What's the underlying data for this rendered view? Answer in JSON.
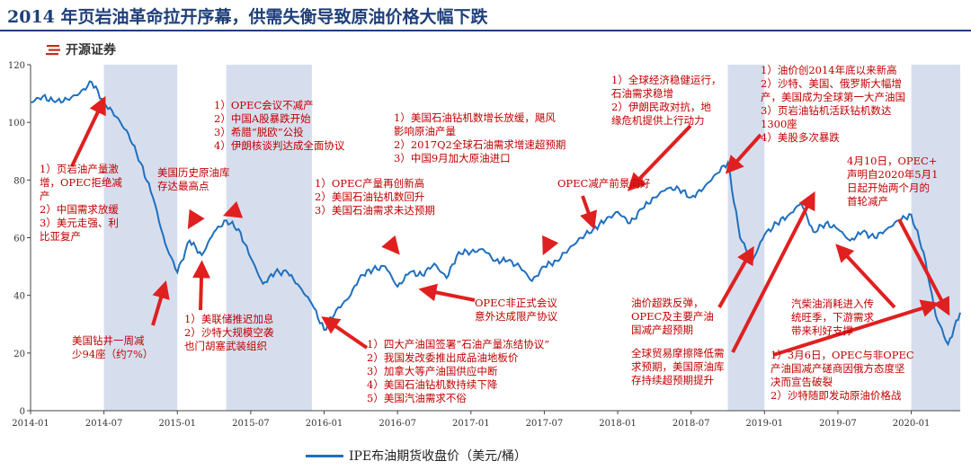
{
  "header": {
    "title": "2014 年页岩油革命拉开序幕，供需失衡导致原油价格大幅下跌",
    "logo_text": "开源证券"
  },
  "colors": {
    "line": "#1f6fbf",
    "shade": "#d6deee",
    "annotation": "#c00000",
    "arrow": "#e02020",
    "title": "#1f3f7a"
  },
  "chart_data": {
    "type": "line",
    "ylim": [
      0,
      120
    ],
    "yticks": [
      0,
      20,
      40,
      60,
      80,
      100,
      120
    ],
    "xlim": [
      "2014-01",
      "2020-05"
    ],
    "xticks": [
      "2014-01",
      "2014-07",
      "2015-01",
      "2015-07",
      "2016-01",
      "2016-07",
      "2017-01",
      "2017-07",
      "2018-01",
      "2018-07",
      "2019-01",
      "2019-07",
      "2020-01"
    ],
    "legend": "IPE布油期货收盘价（美元/桶）",
    "shaded_periods": [
      [
        "2014-07",
        "2015-01"
      ],
      [
        "2015-05",
        "2015-12"
      ],
      [
        "2018-10",
        "2019-01"
      ],
      [
        "2020-01",
        "2020-05"
      ]
    ],
    "series": [
      {
        "name": "IPE布油期货收盘价（美元/桶）",
        "points": [
          [
            "2014-01",
            107
          ],
          [
            "2014-02",
            109
          ],
          [
            "2014-03",
            107
          ],
          [
            "2014-04",
            108
          ],
          [
            "2014-05",
            110
          ],
          [
            "2014-06",
            114
          ],
          [
            "2014-07",
            107
          ],
          [
            "2014-08",
            102
          ],
          [
            "2014-09",
            96
          ],
          [
            "2014-10",
            86
          ],
          [
            "2014-11",
            74
          ],
          [
            "2014-12",
            58
          ],
          [
            "2015-01",
            48
          ],
          [
            "2015-02",
            59
          ],
          [
            "2015-03",
            54
          ],
          [
            "2015-04",
            62
          ],
          [
            "2015-05",
            66
          ],
          [
            "2015-06",
            63
          ],
          [
            "2015-07",
            53
          ],
          [
            "2015-08",
            44
          ],
          [
            "2015-09",
            48
          ],
          [
            "2015-10",
            48
          ],
          [
            "2015-11",
            43
          ],
          [
            "2015-12",
            37
          ],
          [
            "2016-01",
            28
          ],
          [
            "2016-02",
            35
          ],
          [
            "2016-03",
            39
          ],
          [
            "2016-04",
            47
          ],
          [
            "2016-05",
            49
          ],
          [
            "2016-06",
            50
          ],
          [
            "2016-07",
            43
          ],
          [
            "2016-08",
            48
          ],
          [
            "2016-09",
            47
          ],
          [
            "2016-10",
            51
          ],
          [
            "2016-11",
            46
          ],
          [
            "2016-12",
            55
          ],
          [
            "2017-01",
            55
          ],
          [
            "2017-02",
            56
          ],
          [
            "2017-03",
            52
          ],
          [
            "2017-04",
            52
          ],
          [
            "2017-05",
            50
          ],
          [
            "2017-06",
            45
          ],
          [
            "2017-07",
            50
          ],
          [
            "2017-08",
            52
          ],
          [
            "2017-09",
            56
          ],
          [
            "2017-10",
            60
          ],
          [
            "2017-11",
            63
          ],
          [
            "2017-12",
            66
          ],
          [
            "2018-01",
            69
          ],
          [
            "2018-02",
            65
          ],
          [
            "2018-03",
            70
          ],
          [
            "2018-04",
            74
          ],
          [
            "2018-05",
            77
          ],
          [
            "2018-06",
            77
          ],
          [
            "2018-07",
            74
          ],
          [
            "2018-08",
            77
          ],
          [
            "2018-09",
            82
          ],
          [
            "2018-10",
            86
          ],
          [
            "2018-11",
            60
          ],
          [
            "2018-12",
            52
          ],
          [
            "2019-01",
            61
          ],
          [
            "2019-02",
            65
          ],
          [
            "2019-03",
            68
          ],
          [
            "2019-04",
            72
          ],
          [
            "2019-05",
            62
          ],
          [
            "2019-06",
            65
          ],
          [
            "2019-07",
            63
          ],
          [
            "2019-08",
            59
          ],
          [
            "2019-09",
            62
          ],
          [
            "2019-10",
            60
          ],
          [
            "2019-11",
            63
          ],
          [
            "2019-12",
            66
          ],
          [
            "2020-01",
            68
          ],
          [
            "2020-02",
            55
          ],
          [
            "2020-03",
            33
          ],
          [
            "2020-04",
            23
          ],
          [
            "2020-05",
            34
          ]
        ]
      }
    ],
    "annotations": [
      {
        "lines": [
          "1）页岩油产量激",
          "增，OPEC拒绝减",
          "产",
          "2）中国需求放缓",
          "3）美元走强、利",
          "比亚复产"
        ],
        "arrow_to": [
          "2014-07",
          108
        ]
      },
      {
        "lines": [
          "美国钻井一周减",
          "少94座（约7%）"
        ],
        "arrow_to": [
          "2014-12",
          44
        ]
      },
      {
        "lines": [
          "美国历史原油库",
          "存达最高点"
        ],
        "arrow_to": [
          "2015-02",
          64
        ]
      },
      {
        "lines": [
          "1）OPEC会议不减产",
          "2）中国A股暴跌开始",
          "3）希腊“脱欧”公投",
          "4）伊朗核谈判达成全面协议"
        ],
        "arrow_to": [
          "2015-05",
          68
        ]
      },
      {
        "lines": [
          "1）美联储推迟加息",
          "2）沙特大规模空袭",
          "也门胡塞武装组织"
        ],
        "arrow_to": [
          "2015-03",
          51
        ]
      },
      {
        "lines": [
          "1）OPEC产量再创新高",
          "2）美国石油钻机数回升",
          "3）美国石油需求未达预期"
        ],
        "arrow_to": [
          "2016-07",
          55
        ]
      },
      {
        "lines": [
          "1）美国石油钻机数增长放缓，飓风",
          "影响原油产量",
          "2）2017Q2全球石油需求增速超预期",
          "3）中国9月加大原油进口"
        ],
        "arrow_to": [
          "2017-07",
          55
        ]
      },
      {
        "lines": [
          "1）四大产油国签署“石油产量冻结协议”",
          "2）我国发改委推出成品油地板价",
          "3）加拿大等产油国供应中断",
          "4）美国石油钻机数持续下降",
          "5）美国汽油需求不俗"
        ],
        "arrow_to": [
          "2016-01",
          32
        ]
      },
      {
        "lines": [
          "OPEC非正式会议",
          "意外达成限产协议"
        ],
        "arrow_to": [
          "2016-09",
          42
        ]
      },
      {
        "lines": [
          "OPEC减产前景向好"
        ],
        "arrow_to": [
          "2017-11",
          64
        ]
      },
      {
        "lines": [
          "1）全球经济稳健运行，",
          "石油需求稳增",
          "2）伊朗民政对抗，地",
          "缘危机提供上行动力"
        ],
        "arrow_to": [
          "2018-02",
          77
        ]
      },
      {
        "lines": [
          "1）油价创2014年底以来新高",
          "2）沙特、美国、俄罗斯大幅增",
          "产，美国成为全球第一大产油国",
          "3）页岩油钻机活跃钻机数达",
          "1300座",
          "4）美股多次暴跌"
        ],
        "arrow_to": [
          "2018-10",
          83
        ]
      },
      {
        "lines": [
          "油价超跌反弹，",
          "OPEC及主要产油",
          "国减产超预期"
        ],
        "arrow_to": [
          "2018-12",
          56
        ]
      },
      {
        "lines": [
          "全球贸易摩擦降低需",
          "求预期，美国原油库",
          "存持续超预期提升"
        ],
        "arrow_to": [
          "2019-05",
          75
        ]
      },
      {
        "lines": [
          "4月10日，OPEC+",
          "声明自2020年5月1",
          "日起开始两个月的",
          "首轮减产"
        ],
        "arrow_to": [
          "2020-04",
          34
        ]
      },
      {
        "lines": [
          "汽柴油消耗进入传",
          "统旺季，下游需求",
          "带来利好支撑"
        ],
        "arrow_to": [
          "2019-07",
          57
        ]
      },
      {
        "lines": [
          "1）3月6日，OPEC与非OPEC",
          "产油国减产磋商因俄方态度坚",
          "决而宣告破裂",
          "2）沙特随即发动原油价格战"
        ],
        "arrow_to": [
          "2020-03",
          37
        ]
      }
    ]
  }
}
